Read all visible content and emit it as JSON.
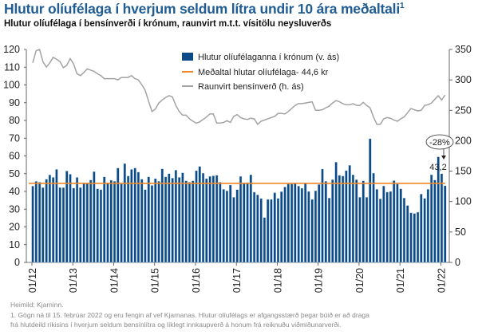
{
  "title": "Hlutur olíufélaga í hverjum seldum lítra undir 10 ára meðaltali",
  "title_sup": "1",
  "subtitle": "Hlutur olíufélaga í bensínverði í krónum, raunvirt m.t.t. vísitölu neysluverðs",
  "footnotes": {
    "source": "Heimild: Kjarninn.",
    "note_line1": "1. Gögn ná til 15. febrúar 2022 og eru fengin af vef Kjarnanas. Hlutur olíufélags er afgangsstærð þegar búið er að draga",
    "note_line2": "frá hlutdeild ríkisins í hverjum seldum bensínlítra og líklegt innkaupverð á honum frá reiknuðu viðmiðunarverði."
  },
  "chart_data": {
    "type": "bar+line",
    "x_tick_labels": [
      "01/12",
      "01/13",
      "01/14",
      "01/15",
      "01/16",
      "01/17",
      "01/18",
      "01/19",
      "01/20",
      "01/21",
      "01/22"
    ],
    "left_axis": {
      "ylim": [
        0,
        120
      ],
      "ticks": [
        0,
        10,
        20,
        30,
        40,
        50,
        60,
        70,
        80,
        90,
        100,
        110,
        120
      ]
    },
    "right_axis": {
      "ylim": [
        0,
        350
      ],
      "ticks": [
        0,
        50,
        100,
        150,
        200,
        250,
        300,
        350
      ]
    },
    "legend": {
      "placement": "top-center",
      "entries": [
        "Hlutur olíufélaganna í krónum (v. ás)",
        "Meðaltal hlutar olíufélaga- 44,6 kr",
        "Raunvirt bensínverð (h. ás)"
      ]
    },
    "colors": {
      "bars": "#0b4a86",
      "mean": "#f0882a",
      "line": "#a3a3a3"
    },
    "series": [
      {
        "name": "Hlutur olíufélaganna í krónum (v. ás)",
        "axis": "left",
        "type": "bar",
        "values": [
          43,
          45.7,
          45.2,
          42.2,
          46.9,
          49.3,
          47.9,
          52.4,
          42.2,
          42.2,
          51.5,
          49.7,
          41.9,
          47.9,
          42.2,
          44.5,
          44.5,
          46.4,
          51.2,
          41.5,
          41,
          48.2,
          44.5,
          46.3,
          45.7,
          53.2,
          44.2,
          55.7,
          48.7,
          52.4,
          53.2,
          50.9,
          46.9,
          41,
          48.2,
          43.4,
          47.2,
          45.7,
          52.7,
          48.2,
          50,
          47.5,
          52,
          47.9,
          50.5,
          46,
          45.2,
          46,
          51.7,
          54.1,
          50.3,
          47.2,
          48.5,
          48.8,
          49.1,
          45.2,
          41.2,
          40.3,
          43.6,
          36.7,
          41,
          48.5,
          44.5,
          45,
          49.4,
          39.6,
          38.1,
          36,
          25.3,
          35.5,
          35.5,
          39.3,
          36.1,
          39.9,
          42.5,
          44.2,
          44.2,
          44.8,
          43,
          41.8,
          44.5,
          40,
          35.5,
          40.4,
          43.9,
          52.6,
          45.7,
          36.3,
          46.6,
          56.5,
          49.1,
          48.7,
          51.7,
          54.7,
          49.4,
          46.6,
          36.7,
          46,
          36.7,
          69.7,
          50.3,
          41.2,
          35.8,
          43.1,
          39.6,
          40,
          46.1,
          44.2,
          41.5,
          36.3,
          32.1,
          28,
          27.6,
          28.3,
          38.5,
          36.1,
          41.2,
          49.4,
          46.4,
          59.5,
          50,
          43.2
        ]
      },
      {
        "name": "Meðaltal hlutar olíufélaga- 44,6 kr",
        "axis": "left",
        "type": "hline",
        "value": 44.6
      },
      {
        "name": "Raunvirt bensínverð (h. ás)",
        "axis": "right",
        "type": "line",
        "values": [
          328,
          348,
          350,
          330,
          321,
          328,
          337,
          334,
          330,
          320,
          324,
          335,
          326,
          310,
          307,
          312,
          318,
          316,
          314,
          310,
          307,
          302,
          302,
          302,
          302,
          300,
          304,
          304,
          304,
          307,
          302,
          300,
          292,
          283,
          265,
          248,
          252,
          262,
          267,
          271,
          274,
          272,
          258,
          248,
          242,
          242,
          236,
          232,
          229,
          231,
          235,
          239,
          244,
          244,
          229,
          229,
          230,
          233,
          230,
          240,
          243,
          238,
          236,
          235,
          237,
          236,
          227,
          232,
          234,
          236,
          238,
          240,
          245,
          245,
          244,
          248,
          253,
          258,
          261,
          261,
          262,
          263,
          264,
          250,
          250,
          251,
          254,
          257,
          262,
          266,
          264,
          261,
          259,
          259,
          261,
          258,
          258,
          263,
          258,
          254,
          239,
          227,
          227,
          236,
          238,
          237,
          234,
          232,
          236,
          239,
          246,
          253,
          251,
          249,
          250,
          258,
          259,
          262,
          268,
          274,
          267,
          275
        ]
      }
    ],
    "annotations": {
      "change_label": "-28%",
      "last_value_label": "43,2"
    }
  }
}
